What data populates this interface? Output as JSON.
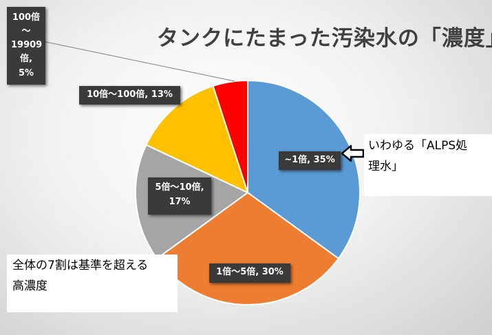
{
  "chart_data": {
    "type": "pie",
    "title": "タンクにたまった汚染水の「濃度」",
    "start_angle_deg": 0,
    "direction": "clockwise",
    "slices": [
      {
        "category": "~1倍",
        "value": 35,
        "label": "~1倍, 35%",
        "color": "#5b9bd5"
      },
      {
        "category": "1倍～5倍",
        "value": 30,
        "label": "1倍～5倍, 30%",
        "color": "#ed7d31"
      },
      {
        "category": "5倍～10倍",
        "value": 17,
        "label_lines": [
          "5倍～10倍,",
          "17%"
        ],
        "color": "#a5a5a5"
      },
      {
        "category": "10倍～100倍",
        "value": 13,
        "label": "10倍～100倍, 13%",
        "color": "#ffc000"
      },
      {
        "category": "100倍～19909倍",
        "value": 5,
        "label_lines": [
          "100倍",
          "～",
          "19909",
          "倍, 5%"
        ],
        "color": "#ff0000"
      }
    ]
  },
  "annotations": {
    "alps": [
      "いわゆる「ALPS処",
      "理水」"
    ],
    "majority": [
      "全体の7割は基準を超える",
      "高濃度"
    ]
  }
}
